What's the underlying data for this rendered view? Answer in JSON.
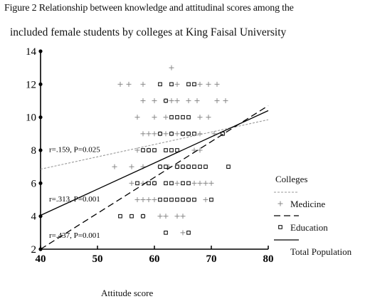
{
  "chart_data": {
    "type": "scatter",
    "title": "Figure 2 Relationship between knowledge and attitudinal scores among the",
    "subtitle": "included female students by colleges at King Faisal University",
    "xlabel": "Attitude score",
    "ylabel": "",
    "xlim": [
      40,
      80
    ],
    "ylim": [
      2,
      14
    ],
    "xticks": [
      40,
      50,
      60,
      70,
      80
    ],
    "yticks": [
      2,
      4,
      6,
      8,
      10,
      12,
      14
    ],
    "grid": false,
    "legend_title": "Colleges",
    "legend_position": "right",
    "series": [
      {
        "name": "Medicine",
        "marker": "plus",
        "points": [
          [
            63,
            13
          ],
          [
            54,
            12
          ],
          [
            55.5,
            12
          ],
          [
            58,
            12
          ],
          [
            64,
            12
          ],
          [
            68,
            12
          ],
          [
            69.5,
            12
          ],
          [
            71,
            12
          ],
          [
            58,
            11
          ],
          [
            60,
            11
          ],
          [
            62,
            11
          ],
          [
            63,
            11
          ],
          [
            64,
            11
          ],
          [
            66,
            11
          ],
          [
            67.5,
            11
          ],
          [
            71,
            11
          ],
          [
            72.5,
            11
          ],
          [
            57,
            10
          ],
          [
            60,
            10
          ],
          [
            62,
            10
          ],
          [
            68,
            10
          ],
          [
            69.5,
            10
          ],
          [
            58,
            9
          ],
          [
            59,
            9
          ],
          [
            60,
            9
          ],
          [
            61,
            9
          ],
          [
            62,
            9
          ],
          [
            63,
            9
          ],
          [
            64,
            9
          ],
          [
            65,
            9
          ],
          [
            66,
            9
          ],
          [
            68,
            9
          ],
          [
            70.5,
            9
          ],
          [
            72,
            9
          ],
          [
            57,
            8
          ],
          [
            59,
            8
          ],
          [
            67,
            8
          ],
          [
            68,
            8
          ],
          [
            53,
            7
          ],
          [
            56,
            7
          ],
          [
            58,
            7
          ],
          [
            61,
            7
          ],
          [
            62.5,
            7
          ],
          [
            64,
            7
          ],
          [
            65,
            7
          ],
          [
            66,
            7
          ],
          [
            56,
            6
          ],
          [
            58,
            6
          ],
          [
            60,
            6
          ],
          [
            64,
            6
          ],
          [
            67,
            6
          ],
          [
            68,
            6
          ],
          [
            69,
            6
          ],
          [
            70,
            6
          ],
          [
            57,
            5
          ],
          [
            58,
            5
          ],
          [
            59,
            5
          ],
          [
            60,
            5
          ],
          [
            66,
            5
          ],
          [
            69,
            5
          ],
          [
            58,
            4
          ],
          [
            61,
            4
          ],
          [
            62,
            4
          ],
          [
            64,
            4
          ],
          [
            65,
            4
          ],
          [
            65,
            3
          ]
        ]
      },
      {
        "name": "Education",
        "marker": "square",
        "points": [
          [
            61,
            12
          ],
          [
            63,
            12
          ],
          [
            66,
            12
          ],
          [
            67,
            12
          ],
          [
            62,
            11
          ],
          [
            63,
            10
          ],
          [
            64,
            10
          ],
          [
            65,
            10
          ],
          [
            66,
            10
          ],
          [
            61,
            9
          ],
          [
            63,
            9
          ],
          [
            65,
            9
          ],
          [
            66,
            9
          ],
          [
            67,
            9
          ],
          [
            72,
            9
          ],
          [
            58,
            8
          ],
          [
            59,
            8
          ],
          [
            60,
            8
          ],
          [
            62,
            8
          ],
          [
            63,
            8
          ],
          [
            64,
            8
          ],
          [
            61,
            7
          ],
          [
            62,
            7
          ],
          [
            64,
            7
          ],
          [
            65,
            7
          ],
          [
            66,
            7
          ],
          [
            67,
            7
          ],
          [
            68,
            7
          ],
          [
            69,
            7
          ],
          [
            73,
            7
          ],
          [
            57,
            6
          ],
          [
            59,
            6
          ],
          [
            60,
            6
          ],
          [
            62,
            6
          ],
          [
            63,
            6
          ],
          [
            65,
            6
          ],
          [
            66,
            6
          ],
          [
            61,
            5
          ],
          [
            62,
            5
          ],
          [
            63,
            5
          ],
          [
            64,
            5
          ],
          [
            65,
            5
          ],
          [
            66,
            5
          ],
          [
            67,
            5
          ],
          [
            70,
            5
          ],
          [
            54,
            4
          ],
          [
            56,
            4
          ],
          [
            58,
            4
          ],
          [
            62,
            3
          ],
          [
            66,
            3
          ]
        ]
      }
    ],
    "fit_lines": [
      {
        "name": "Medicine",
        "style": "dotted",
        "x": [
          40,
          80
        ],
        "y": [
          6.85,
          9.85
        ]
      },
      {
        "name": "Education",
        "style": "dashed",
        "x": [
          40,
          80
        ],
        "y": [
          2.0,
          10.7
        ]
      },
      {
        "name": "Total Population",
        "style": "solid",
        "x": [
          40,
          80
        ],
        "y": [
          4.05,
          10.4
        ]
      }
    ],
    "annotations": [
      {
        "text": "r=.159, P=0.025",
        "x": 41.5,
        "y": 7.9
      },
      {
        "text": "r=.313, P=0.001",
        "x": 41.5,
        "y": 4.9
      },
      {
        "text": "r=.437, P=0.001",
        "x": 41.5,
        "y": 2.7
      }
    ]
  }
}
